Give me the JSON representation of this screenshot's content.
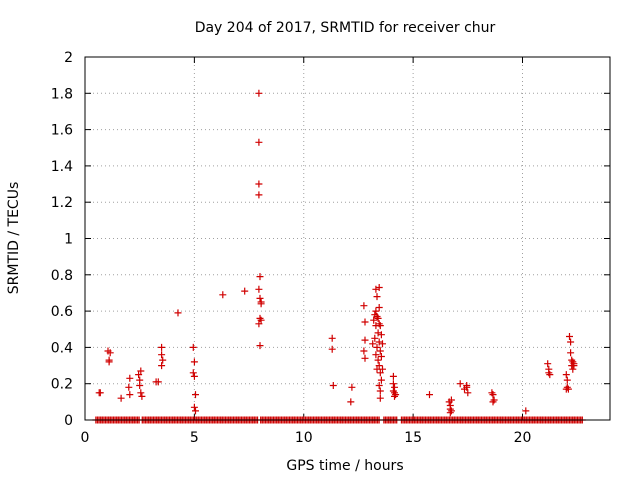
{
  "chart_data": {
    "type": "scatter",
    "title": "Day 204 of 2017, SRMTID for receiver chur",
    "xlabel": "GPS time / hours",
    "ylabel": "SRMTID / TECUs",
    "xlim": [
      0,
      24
    ],
    "ylim": [
      0,
      2
    ],
    "xticks": [
      0,
      5,
      10,
      15,
      20
    ],
    "xtick_labels": [
      "0",
      "5",
      "10",
      "15",
      "20"
    ],
    "yticks": [
      0,
      0.2,
      0.4,
      0.6,
      0.8,
      1,
      1.2,
      1.4,
      1.6,
      1.8,
      2
    ],
    "ytick_labels": [
      "0",
      "0.2",
      "0.4",
      "0.6",
      "0.8",
      "1",
      "1.2",
      "1.4",
      "1.6",
      "1.8",
      "2"
    ],
    "grid": true,
    "marker": "+",
    "color": "#d00000",
    "baseline": {
      "y": 0,
      "x_start": 0.5,
      "x_end": 22.8,
      "gaps": [
        [
          2.5,
          2.6
        ],
        [
          7.9,
          8.0
        ],
        [
          13.5,
          13.6
        ],
        [
          14.3,
          14.4
        ]
      ]
    },
    "points": [
      [
        0.65,
        0.15
      ],
      [
        0.7,
        0.15
      ],
      [
        1.05,
        0.38
      ],
      [
        1.1,
        0.33
      ],
      [
        1.15,
        0.37
      ],
      [
        1.1,
        0.32
      ],
      [
        1.65,
        0.12
      ],
      [
        2.0,
        0.18
      ],
      [
        2.05,
        0.23
      ],
      [
        2.05,
        0.14
      ],
      [
        2.45,
        0.25
      ],
      [
        2.5,
        0.22
      ],
      [
        2.5,
        0.19
      ],
      [
        2.55,
        0.27
      ],
      [
        2.55,
        0.15
      ],
      [
        2.6,
        0.13
      ],
      [
        3.25,
        0.21
      ],
      [
        3.35,
        0.21
      ],
      [
        3.5,
        0.4
      ],
      [
        3.5,
        0.36
      ],
      [
        3.55,
        0.33
      ],
      [
        3.5,
        0.3
      ],
      [
        4.25,
        0.59
      ],
      [
        4.95,
        0.4
      ],
      [
        4.95,
        0.26
      ],
      [
        5.0,
        0.32
      ],
      [
        5.0,
        0.24
      ],
      [
        5.05,
        0.14
      ],
      [
        5.0,
        0.07
      ],
      [
        5.05,
        0.05
      ],
      [
        6.3,
        0.69
      ],
      [
        7.3,
        0.71
      ],
      [
        7.95,
        1.8
      ],
      [
        7.95,
        1.53
      ],
      [
        7.95,
        1.3
      ],
      [
        7.95,
        1.24
      ],
      [
        8.0,
        0.79
      ],
      [
        7.95,
        0.72
      ],
      [
        8.0,
        0.67
      ],
      [
        8.05,
        0.65
      ],
      [
        8.05,
        0.64
      ],
      [
        8.0,
        0.56
      ],
      [
        8.05,
        0.55
      ],
      [
        7.95,
        0.53
      ],
      [
        8.0,
        0.41
      ],
      [
        11.3,
        0.45
      ],
      [
        11.3,
        0.39
      ],
      [
        11.35,
        0.19
      ],
      [
        12.15,
        0.1
      ],
      [
        12.2,
        0.18
      ],
      [
        12.75,
        0.63
      ],
      [
        12.8,
        0.54
      ],
      [
        12.8,
        0.44
      ],
      [
        12.75,
        0.38
      ],
      [
        12.8,
        0.34
      ],
      [
        13.15,
        0.42
      ],
      [
        13.2,
        0.55
      ],
      [
        13.25,
        0.58
      ],
      [
        13.25,
        0.45
      ],
      [
        13.3,
        0.72
      ],
      [
        13.3,
        0.6
      ],
      [
        13.3,
        0.52
      ],
      [
        13.3,
        0.36
      ],
      [
        13.35,
        0.68
      ],
      [
        13.35,
        0.57
      ],
      [
        13.35,
        0.4
      ],
      [
        13.35,
        0.28
      ],
      [
        13.4,
        0.56
      ],
      [
        13.4,
        0.48
      ],
      [
        13.4,
        0.33
      ],
      [
        13.45,
        0.73
      ],
      [
        13.45,
        0.62
      ],
      [
        13.45,
        0.53
      ],
      [
        13.45,
        0.43
      ],
      [
        13.45,
        0.3
      ],
      [
        13.45,
        0.19
      ],
      [
        13.5,
        0.52
      ],
      [
        13.5,
        0.38
      ],
      [
        13.5,
        0.26
      ],
      [
        13.5,
        0.16
      ],
      [
        13.5,
        0.12
      ],
      [
        13.55,
        0.47
      ],
      [
        13.55,
        0.35
      ],
      [
        13.55,
        0.22
      ],
      [
        13.6,
        0.42
      ],
      [
        13.6,
        0.28
      ],
      [
        14.1,
        0.24
      ],
      [
        14.1,
        0.2
      ],
      [
        14.15,
        0.18
      ],
      [
        14.1,
        0.16
      ],
      [
        14.15,
        0.15
      ],
      [
        14.2,
        0.14
      ],
      [
        14.15,
        0.13
      ],
      [
        15.75,
        0.14
      ],
      [
        16.65,
        0.1
      ],
      [
        16.7,
        0.08
      ],
      [
        16.7,
        0.06
      ],
      [
        16.75,
        0.05
      ],
      [
        16.75,
        0.11
      ],
      [
        16.7,
        0.04
      ],
      [
        17.15,
        0.2
      ],
      [
        17.35,
        0.17
      ],
      [
        17.45,
        0.19
      ],
      [
        17.5,
        0.15
      ],
      [
        17.45,
        0.18
      ],
      [
        18.6,
        0.15
      ],
      [
        18.65,
        0.14
      ],
      [
        18.7,
        0.11
      ],
      [
        18.65,
        0.1
      ],
      [
        20.15,
        0.05
      ],
      [
        21.15,
        0.31
      ],
      [
        21.2,
        0.28
      ],
      [
        21.2,
        0.26
      ],
      [
        21.25,
        0.25
      ],
      [
        22.0,
        0.25
      ],
      [
        22.05,
        0.22
      ],
      [
        22.05,
        0.18
      ],
      [
        22.0,
        0.17
      ],
      [
        22.1,
        0.17
      ],
      [
        22.15,
        0.46
      ],
      [
        22.2,
        0.43
      ],
      [
        22.2,
        0.37
      ],
      [
        22.25,
        0.33
      ],
      [
        22.25,
        0.3
      ],
      [
        22.3,
        0.32
      ],
      [
        22.3,
        0.28
      ],
      [
        22.35,
        0.31
      ],
      [
        22.35,
        0.3
      ]
    ]
  }
}
